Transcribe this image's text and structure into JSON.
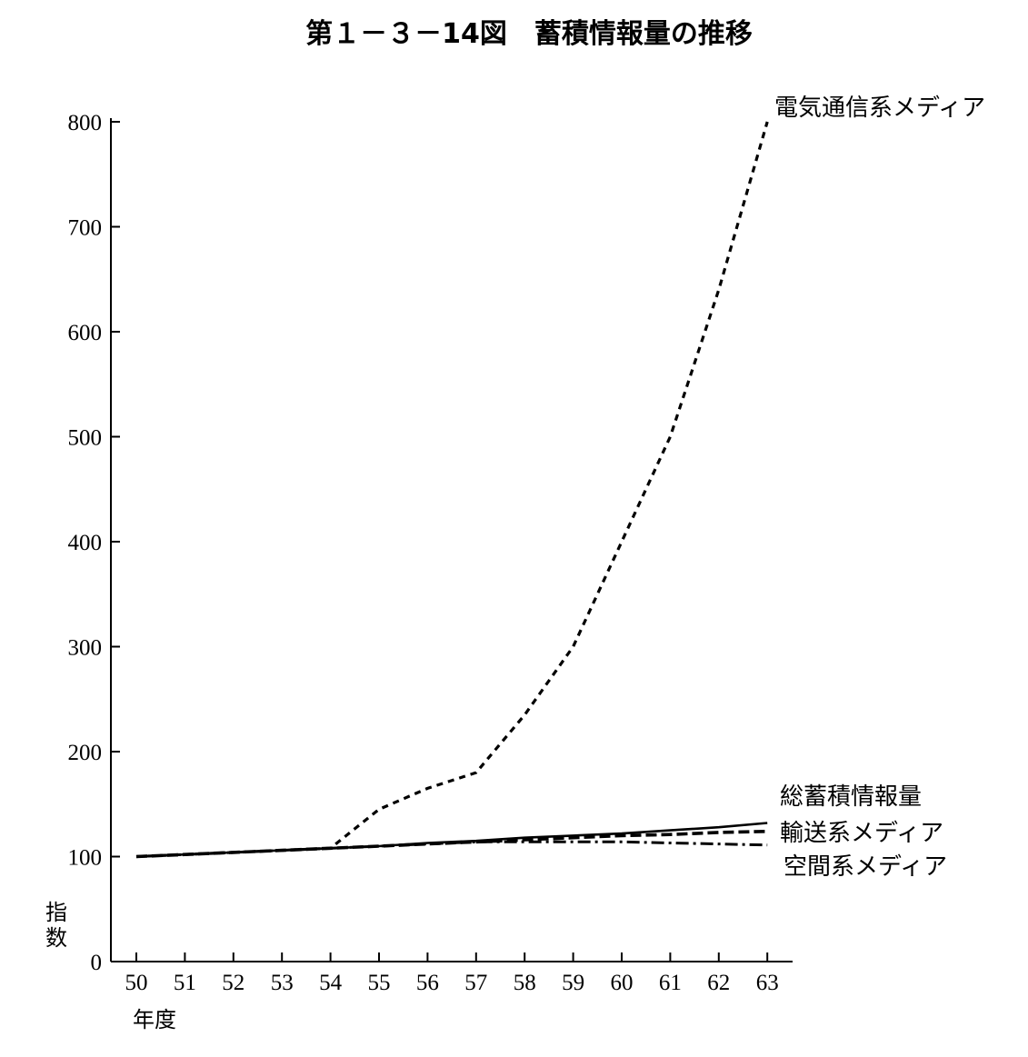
{
  "chart_data": {
    "type": "line",
    "title": "第１－３－14図　蓄積情報量の推移",
    "ylabel": "指数",
    "xlabel": "年度",
    "ylim": [
      0,
      800
    ],
    "yticks": [
      0,
      100,
      200,
      300,
      400,
      500,
      600,
      700,
      800
    ],
    "x": [
      "50",
      "51",
      "52",
      "53",
      "54",
      "55",
      "56",
      "57",
      "58",
      "59",
      "60",
      "61",
      "62",
      "63"
    ],
    "grid": false,
    "series": [
      {
        "name": "電気通信系メディア",
        "style": "dashed",
        "values": [
          100,
          102,
          104,
          106,
          108,
          145,
          165,
          180,
          235,
          300,
          400,
          500,
          640,
          800
        ]
      },
      {
        "name": "総蓄積情報量",
        "style": "solid",
        "values": [
          100,
          102,
          104,
          106,
          108,
          110,
          113,
          115,
          118,
          120,
          122,
          125,
          128,
          132
        ]
      },
      {
        "name": "輸送系メディア",
        "style": "dashed-heavy",
        "values": [
          100,
          102,
          104,
          106,
          108,
          110,
          112,
          114,
          116,
          118,
          120,
          121,
          123,
          124
        ]
      },
      {
        "name": "空間系メディア",
        "style": "dashdot",
        "values": [
          100,
          102,
          104,
          106,
          108,
          110,
          112,
          114,
          114,
          114,
          114,
          113,
          112,
          111
        ]
      }
    ]
  }
}
